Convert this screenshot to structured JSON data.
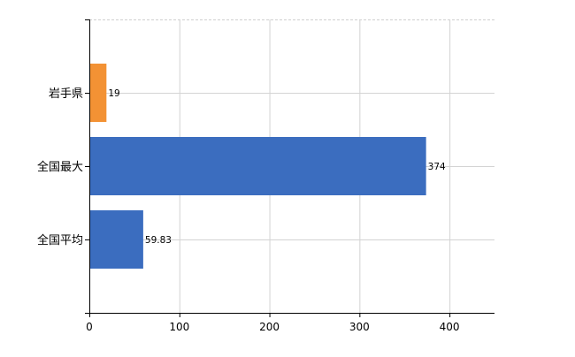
{
  "chart_data": {
    "type": "bar",
    "orientation": "horizontal",
    "categories": [
      "岩手県",
      "全国最大",
      "全国平均"
    ],
    "values": [
      19,
      374,
      59.83
    ],
    "value_labels": [
      "19",
      "374",
      "59.83"
    ],
    "bar_colors": [
      "#f39234",
      "#3b6dbf",
      "#3b6dbf"
    ],
    "title": "",
    "xlabel": "",
    "ylabel": "",
    "xlim": [
      0,
      450
    ],
    "x_ticks": [
      0,
      100,
      200,
      300,
      400
    ],
    "x_tick_labels": [
      "0",
      "100",
      "200",
      "300",
      "400"
    ],
    "grid": true,
    "legend": "none"
  }
}
